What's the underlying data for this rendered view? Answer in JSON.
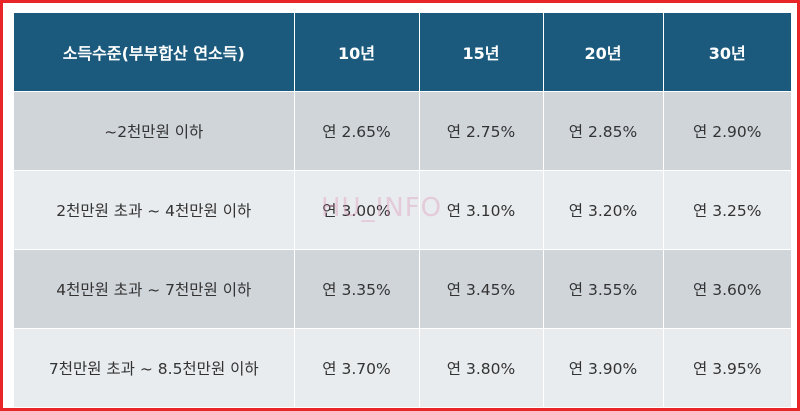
{
  "table": {
    "headers": [
      "소득수준(부부합산 연소득)",
      "10년",
      "15년",
      "20년",
      "30년"
    ],
    "rows": [
      [
        "~2천만원 이하",
        "연 2.65%",
        "연 2.75%",
        "연 2.85%",
        "연 2.90%"
      ],
      [
        "2천만원 초과 ~ 4천만원 이하",
        "연 3.00%",
        "연 3.10%",
        "연 3.20%",
        "연 3.25%"
      ],
      [
        "4천만원 초과 ~ 7천만원 이하",
        "연 3.35%",
        "연 3.45%",
        "연 3.55%",
        "연 3.60%"
      ],
      [
        "7천만원 초과 ~ 8.5천만원 이하",
        "연 3.70%",
        "연 3.80%",
        "연 3.90%",
        "연 3.95%"
      ]
    ]
  },
  "watermark": "HU_INFO",
  "colors": {
    "header_bg": "#1b5a7d",
    "row_dark": "#d0d5da",
    "row_light": "#e9ecef",
    "frame_border": "#e8262a"
  }
}
